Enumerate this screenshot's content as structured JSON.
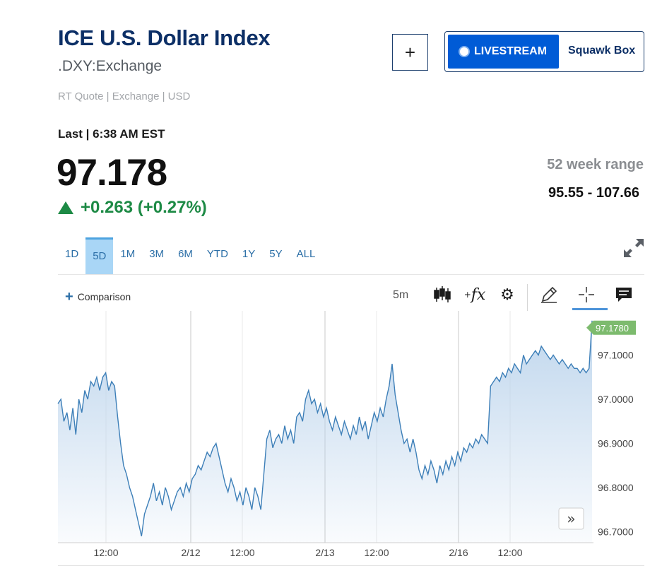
{
  "header": {
    "title": "ICE U.S. Dollar Index",
    "symbol": ".DXY:Exchange",
    "quote_meta": "RT Quote | Exchange | USD",
    "add_button": "+",
    "livestream_label": "LIVESTREAM",
    "squawk_label": "Squawk Box"
  },
  "quote": {
    "last_label": "Last | 6:38 AM EST",
    "price": "97.178",
    "change": "+0.263 (+0.27%)",
    "week_range_label": "52 week range",
    "week_range_value": "95.55 - 107.66",
    "change_color": "#1d8a45"
  },
  "range_tabs": [
    {
      "label": "1D",
      "active": false
    },
    {
      "label": "5D",
      "active": true
    },
    {
      "label": "1M",
      "active": false
    },
    {
      "label": "3M",
      "active": false
    },
    {
      "label": "6M",
      "active": false
    },
    {
      "label": "YTD",
      "active": false
    },
    {
      "label": "1Y",
      "active": false
    },
    {
      "label": "5Y",
      "active": false
    },
    {
      "label": "ALL",
      "active": false
    }
  ],
  "toolbar": {
    "comparison_label": "Comparison",
    "interval": "5m",
    "icons": [
      "candlestick-icon",
      "function-icon",
      "gear-icon",
      "pencil-icon",
      "crosshair-icon",
      "comment-icon",
      "expand-icon",
      "scroll-right-icon"
    ]
  },
  "chart_data": {
    "type": "area",
    "title": "",
    "xlabel": "",
    "ylabel": "",
    "ylim": [
      96.68,
      97.2
    ],
    "y_ticks": [
      "97.1000",
      "97.0000",
      "96.9000",
      "96.8000",
      "96.7000"
    ],
    "x_ticks": [
      "12:00",
      "2/12",
      "12:00",
      "2/13",
      "12:00",
      "2/16",
      "12:00"
    ],
    "last_value_label": "97.1780",
    "line_color": "#3d7fb8",
    "fill_color": "#bcd4ec",
    "last_badge_color": "#7dbb6e",
    "series": [
      {
        "values": [
          96.99,
          97.0,
          96.95,
          96.97,
          96.93,
          96.98,
          96.92,
          97.0,
          96.97,
          97.02,
          97.0,
          97.04,
          97.03,
          97.05,
          97.02,
          97.05,
          97.06,
          97.02,
          97.04,
          97.03,
          96.96,
          96.9,
          96.85,
          96.83,
          96.8,
          96.78,
          96.75,
          96.72,
          96.69,
          96.74,
          96.76,
          96.78,
          96.81,
          96.77,
          96.79,
          96.76,
          96.8,
          96.78,
          96.75,
          96.77,
          96.79,
          96.8,
          96.78,
          96.81,
          96.79,
          96.82,
          96.83,
          96.85,
          96.84,
          96.86,
          96.88,
          96.87,
          96.89,
          96.9,
          96.87,
          96.84,
          96.81,
          96.79,
          96.82,
          96.8,
          96.77,
          96.79,
          96.76,
          96.8,
          96.78,
          96.75,
          96.8,
          96.78,
          96.75,
          96.83,
          96.91,
          96.93,
          96.89,
          96.91,
          96.92,
          96.9,
          96.94,
          96.91,
          96.93,
          96.9,
          96.96,
          96.97,
          96.95,
          97.0,
          97.02,
          96.99,
          97.0,
          96.97,
          96.99,
          96.96,
          96.98,
          96.95,
          96.93,
          96.96,
          96.94,
          96.92,
          96.95,
          96.93,
          96.91,
          96.94,
          96.92,
          96.96,
          96.93,
          96.95,
          96.91,
          96.94,
          96.97,
          96.95,
          96.98,
          96.96,
          97.0,
          97.03,
          97.08,
          97.01,
          96.97,
          96.93,
          96.9,
          96.91,
          96.88,
          96.91,
          96.88,
          96.84,
          96.82,
          96.85,
          96.83,
          96.86,
          96.84,
          96.81,
          96.85,
          96.83,
          96.86,
          96.84,
          96.87,
          96.85,
          96.88,
          96.86,
          96.89,
          96.88,
          96.9,
          96.89,
          96.91,
          96.9,
          96.92,
          96.91,
          96.9,
          97.03,
          97.04,
          97.05,
          97.04,
          97.06,
          97.05,
          97.07,
          97.06,
          97.08,
          97.07,
          97.06,
          97.1,
          97.08,
          97.09,
          97.1,
          97.11,
          97.1,
          97.12,
          97.11,
          97.1,
          97.09,
          97.1,
          97.09,
          97.08,
          97.09,
          97.08,
          97.07,
          97.08,
          97.07,
          97.07,
          97.06,
          97.07,
          97.06,
          97.07,
          97.178
        ]
      }
    ]
  }
}
